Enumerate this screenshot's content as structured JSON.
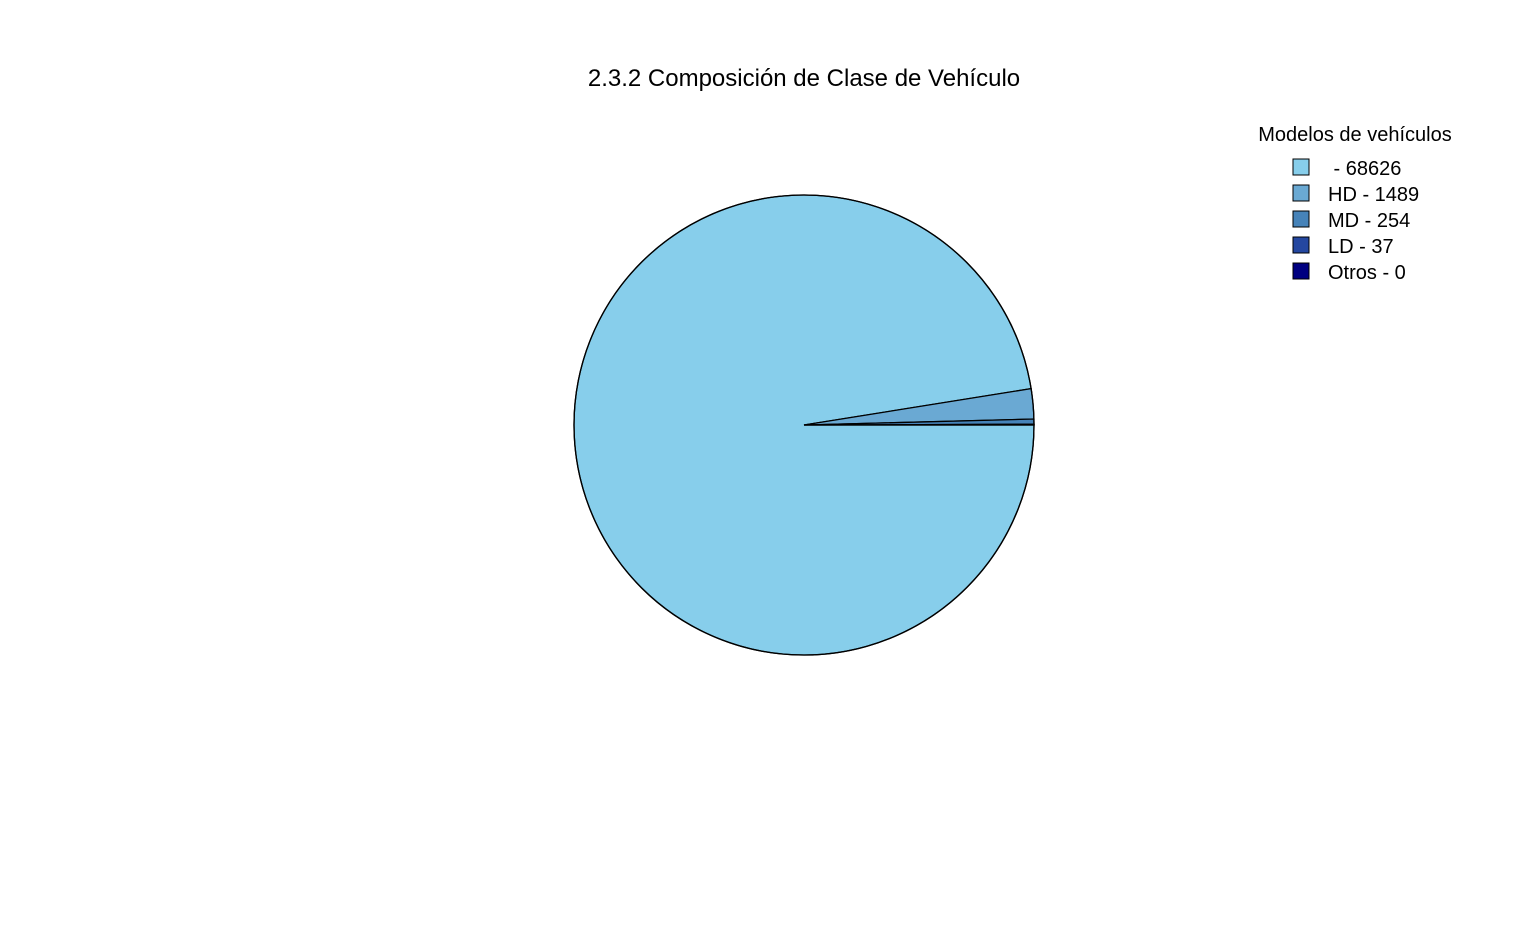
{
  "chart_data": {
    "type": "pie",
    "title": "2.3.2 Composición de Clase de Vehículo",
    "legend": {
      "title": "Modelos de vehículos",
      "placement": "top-right"
    },
    "slices": [
      {
        "label": " - 68626",
        "category": "",
        "value": 68626,
        "color": "#87CEEB"
      },
      {
        "label": "HD - 1489",
        "category": "HD",
        "value": 1489,
        "color": "#6AA9D3"
      },
      {
        "label": "MD - 254",
        "category": "MD",
        "value": 254,
        "color": "#4683B9"
      },
      {
        "label": "LD - 37",
        "category": "LD",
        "value": 37,
        "color": "#2447A0"
      },
      {
        "label": "Otros - 0",
        "category": "Otros",
        "value": 0,
        "color": "#000080"
      }
    ],
    "start_angle": "0 deg (3 o'clock)",
    "direction": "clockwise",
    "outline_color": "#000000"
  }
}
